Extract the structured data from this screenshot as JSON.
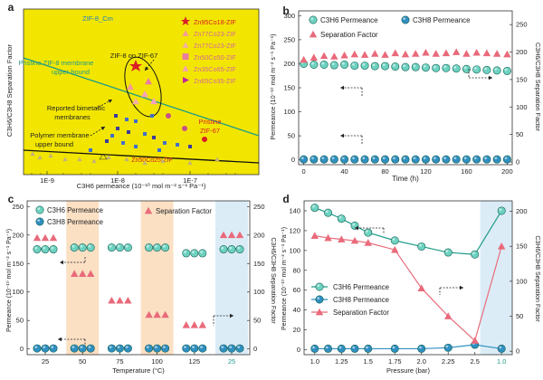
{
  "colors": {
    "panel_a_bg": "#f2e600",
    "teal": "#1f9c88",
    "teal_light": "#6dd2c0",
    "blue": "#2f8fc0",
    "pink": "#e96a7a",
    "red": "#d81f26",
    "orange_band": "#fbe0c4",
    "blue_band": "#dcecf7"
  },
  "chart_data": [
    {
      "panel": "a",
      "type": "scatter",
      "xlabel": "C3H6 permeance (10⁻¹⁰ mol m⁻² s⁻¹ Pa⁻¹)",
      "ylabel": "C3H6/C3H8 Separation Factor",
      "xscale": "log",
      "xticks": [
        "1E-9",
        "1E-8",
        "1E-7"
      ],
      "legend": [
        "Zn95Co18-ZIF",
        "Zn77Co23-ZIF",
        "Zn77Co23-ZIF",
        "Zn50Co50-ZIF",
        "Zn35Co65-ZIF",
        "Zn65Co35-ZIF"
      ],
      "legend_top": "ZIF-8_Cm",
      "annotations": [
        "Pristine ZIF-8 membrane upper bound",
        "ZIF-8 on ZIF-67",
        "Reported bimetallic membranes",
        "Polymer membrane upper bound",
        "Pristine ZIF-67",
        "Zn50Co25-ZIF"
      ]
    },
    {
      "panel": "b",
      "type": "line",
      "xlabel": "Time (h)",
      "ylabel_left": "Permeance (10⁻¹⁰ mol m⁻² s⁻¹ Pa⁻¹)",
      "ylabel_right": "C3H6/C3H8 Separation Factor",
      "xlim": [
        -5,
        205
      ],
      "ylim": [
        -10,
        310
      ],
      "y2lim": [
        -5,
        275
      ],
      "xticks": [
        "0",
        "40",
        "80",
        "120",
        "160",
        "200"
      ],
      "yticks": [
        "0",
        "50",
        "100",
        "150",
        "200",
        "250",
        "300"
      ],
      "y2ticks": [
        "0",
        "50",
        "100",
        "150",
        "200",
        "250"
      ],
      "series": [
        {
          "name": "C3H6 Permeance",
          "axis": "left",
          "x": [
            0,
            10,
            20,
            30,
            40,
            50,
            60,
            70,
            80,
            90,
            100,
            110,
            120,
            130,
            140,
            150,
            160,
            170,
            180,
            190,
            200
          ],
          "values": [
            200,
            198,
            198,
            197,
            198,
            196,
            196,
            195,
            195,
            194,
            193,
            193,
            192,
            191,
            191,
            190,
            189,
            188,
            187,
            186,
            185
          ]
        },
        {
          "name": "C3H8 Permeance",
          "axis": "left",
          "x": [
            0,
            10,
            20,
            30,
            40,
            50,
            60,
            70,
            80,
            90,
            100,
            110,
            120,
            130,
            140,
            150,
            160,
            170,
            180,
            190,
            200
          ],
          "values": [
            1,
            1,
            1,
            1,
            1,
            1,
            1,
            1,
            1,
            1,
            1,
            1,
            1,
            1,
            1,
            1,
            1,
            1,
            1,
            1,
            1
          ]
        },
        {
          "name": "Separation Factor",
          "axis": "right",
          "x": [
            0,
            10,
            20,
            30,
            40,
            50,
            60,
            70,
            80,
            90,
            100,
            110,
            120,
            130,
            140,
            150,
            160,
            170,
            180,
            190,
            200
          ],
          "values": [
            186,
            190,
            193,
            192,
            194,
            196,
            195,
            197,
            195,
            198,
            196,
            197,
            199,
            197,
            198,
            200,
            197,
            199,
            198,
            197,
            196
          ]
        }
      ]
    },
    {
      "panel": "c",
      "type": "scatter",
      "xlabel": "Temperature (°C)",
      "ylabel_left": "Permeance (10⁻¹⁰ mol m⁻² s⁻¹ Pa⁻¹)",
      "ylabel_right": "C3H6/C3H8 Separation Factor",
      "categories": [
        "25",
        "50",
        "75",
        "100",
        "125",
        "25"
      ],
      "ylim": [
        -10,
        260
      ],
      "y2lim": [
        -10,
        260
      ],
      "yticks": [
        "0",
        "50",
        "100",
        "150",
        "200",
        "250"
      ],
      "y2ticks": [
        "0",
        "50",
        "100",
        "150",
        "200",
        "250"
      ],
      "series": [
        {
          "name": "C3H6 Permeance",
          "axis": "left",
          "values": [
            175,
            178,
            178,
            178,
            168,
            175
          ]
        },
        {
          "name": "C3H8 Permeance",
          "axis": "left",
          "values": [
            1,
            1,
            1,
            1,
            1,
            1
          ]
        },
        {
          "name": "Separation Factor",
          "axis": "right",
          "values": [
            195,
            132,
            85,
            60,
            42,
            200
          ]
        }
      ]
    },
    {
      "panel": "d",
      "type": "line",
      "xlabel": "Pressure (bar)",
      "ylabel_left": "Permeance (10⁻¹⁰ mol m⁻² s⁻¹ Pa⁻¹)",
      "ylabel_right": "C3H6/C3H8 Separation Factor",
      "categories": [
        "1.0",
        "1.25",
        "1.5",
        "1.75",
        "2.0",
        "2.25",
        "2.5",
        "1.0"
      ],
      "ylim": [
        -5,
        150
      ],
      "y2lim": [
        -5,
        215
      ],
      "yticks": [
        "0",
        "20",
        "40",
        "60",
        "80",
        "100",
        "120",
        "140"
      ],
      "y2ticks": [
        "0",
        "50",
        "100",
        "150",
        "200"
      ],
      "series": [
        {
          "name": "C3H6 Permeance",
          "axis": "left",
          "x": [
            1.0,
            1.125,
            1.25,
            1.375,
            1.5,
            1.75,
            2.0,
            2.25,
            2.5,
            2.75
          ],
          "values": [
            143,
            138,
            132,
            125,
            118,
            110,
            104,
            98,
            96,
            140
          ]
        },
        {
          "name": "C3H8 Permeance",
          "axis": "left",
          "x": [
            1.0,
            1.125,
            1.25,
            1.375,
            1.5,
            1.75,
            2.0,
            2.25,
            2.5,
            2.75
          ],
          "values": [
            1,
            1,
            1,
            1,
            1,
            1,
            1,
            2,
            5,
            1
          ]
        },
        {
          "name": "Separation Factor",
          "axis": "right",
          "x": [
            1.0,
            1.125,
            1.25,
            1.375,
            1.5,
            1.75,
            2.0,
            2.25,
            2.5,
            2.75
          ],
          "values": [
            165,
            162,
            160,
            158,
            155,
            145,
            90,
            50,
            15,
            150
          ]
        }
      ]
    }
  ]
}
